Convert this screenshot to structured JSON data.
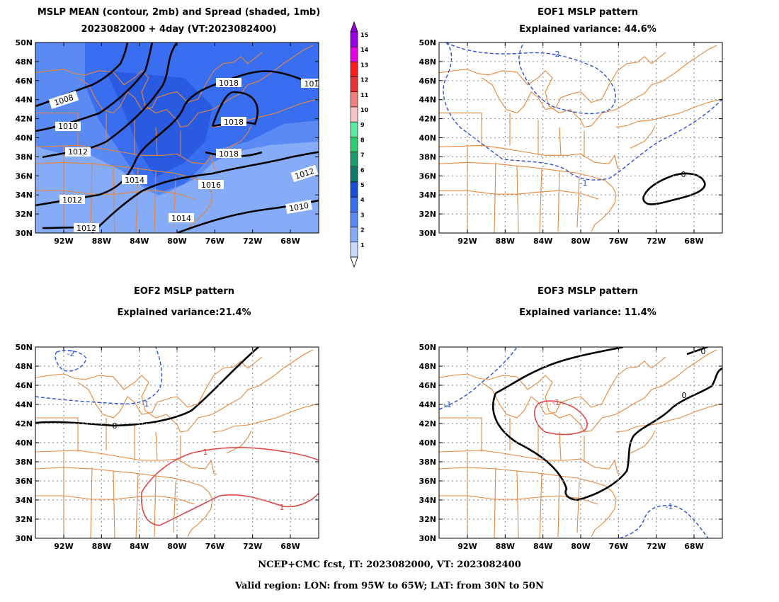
{
  "panels": {
    "mean": {
      "title1": "MSLP MEAN (contour, 2mb) and Spread (shaded, 1mb)",
      "title2": "2023082000 + 4day (VT:2023082400)",
      "contour_labels": [
        "1008",
        "1010",
        "1012",
        "1014",
        "1016",
        "1018",
        "1012",
        "1010",
        "1012",
        "1014",
        "1018",
        "1018",
        "1012",
        "101",
        "1012"
      ]
    },
    "eof1": {
      "title1": "EOF1 MSLP pattern",
      "title2": "Explained variance: 44.6%",
      "contour_labels": [
        "-2",
        "-1",
        "0"
      ]
    },
    "eof2": {
      "title1": "EOF2 MSLP pattern",
      "title2": "Explained variance:21.4%",
      "contour_labels": [
        "-2",
        "-1",
        "0",
        "1",
        "1"
      ]
    },
    "eof3": {
      "title1": "EOF3 MSLP pattern",
      "title2": "Explained variance: 11.4%",
      "contour_labels": [
        "-1",
        "-1",
        "-1",
        "0",
        "0",
        "0"
      ]
    }
  },
  "axes": {
    "lat_labels": [
      "50N",
      "48N",
      "46N",
      "44N",
      "42N",
      "40N",
      "38N",
      "36N",
      "34N",
      "32N",
      "30N"
    ],
    "lon_labels": [
      "92W",
      "88W",
      "84W",
      "80W",
      "76W",
      "72W",
      "68W"
    ],
    "lon_range": [
      -95,
      -65
    ],
    "lat_range": [
      30,
      50
    ]
  },
  "colorbar": {
    "labels": [
      "15",
      "14",
      "13",
      "12",
      "11",
      "10",
      "9",
      "8",
      "7",
      "6",
      "5",
      "4",
      "3",
      "2",
      "1"
    ],
    "colors": [
      "#9a00e6",
      "#e600e6",
      "#ff1a1a",
      "#e63232",
      "#f08080",
      "#f7c2c2",
      "#5de8a0",
      "#2ecc71",
      "#1a9d6a",
      "#0f7a6a",
      "#1a4dd6",
      "#3a6ef0",
      "#5a8bf5",
      "#86acf7",
      "#c8dafc"
    ]
  },
  "footer": {
    "line1": "NCEP+CMC fcst, IT: 2023082000, VT: 2023082400",
    "line2": "Valid region: LON: from 95W to 65W; LAT: from 30N to 50N"
  }
}
